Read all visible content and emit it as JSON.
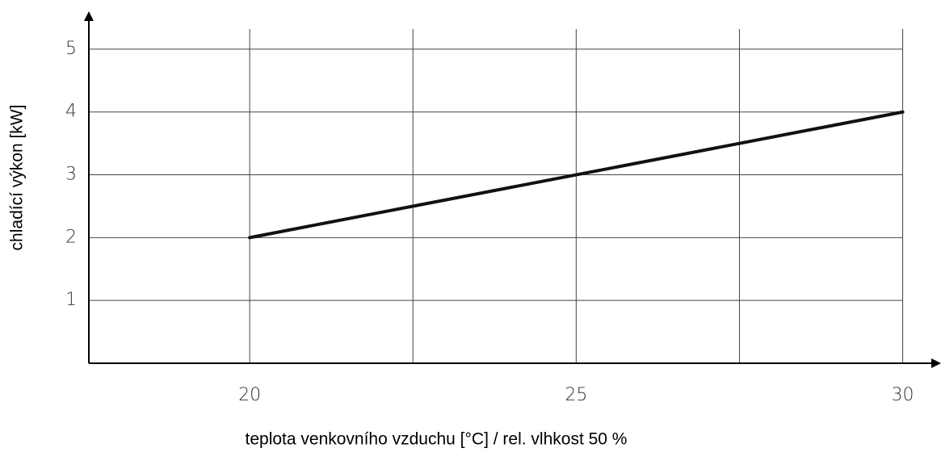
{
  "chart_data": {
    "type": "line",
    "xlabel": "teplota venkovního vzduchu [°C] / rel. vlhkost 50 %",
    "ylabel": "chladící výkon [kW]",
    "x": [
      20,
      30
    ],
    "series": [
      {
        "color": "#111111",
        "values": [
          2,
          4
        ]
      }
    ],
    "xlim": [
      17.5,
      30.5
    ],
    "xticks": [
      20,
      25,
      30
    ],
    "xminor_grid": [
      22.5,
      27.5
    ],
    "ylim": [
      0,
      5.5
    ],
    "yticks": [
      1,
      2,
      3,
      4,
      5
    ],
    "grid": true
  }
}
